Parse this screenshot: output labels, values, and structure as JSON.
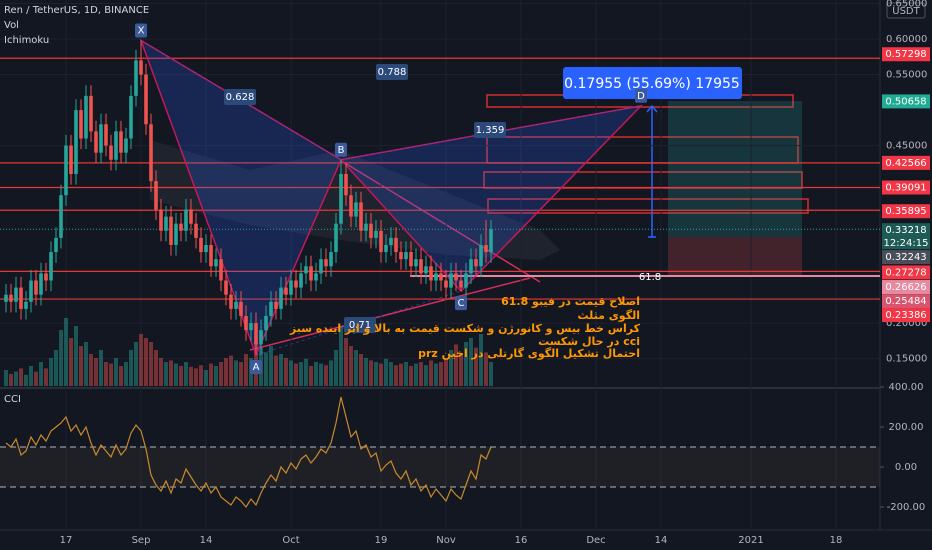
{
  "chart_data": [
    {
      "type": "candlestick",
      "title": "Ren / TetherUS, 1D, BINANCE",
      "indicators": [
        "Vol",
        "Ichimoku"
      ],
      "currency": "USDT",
      "up_color": "#26a69a",
      "down_color": "#ef5350",
      "open": [
        0.23,
        0.24,
        0.23,
        0.25,
        0.22,
        0.23,
        0.26,
        0.24,
        0.27,
        0.26,
        0.3,
        0.32,
        0.38,
        0.45,
        0.41,
        0.5,
        0.46,
        0.52,
        0.47,
        0.44,
        0.48,
        0.45,
        0.43,
        0.47,
        0.44,
        0.46,
        0.52,
        0.57,
        0.55,
        0.48,
        0.4,
        0.36,
        0.33,
        0.35,
        0.31,
        0.34,
        0.33,
        0.36,
        0.34,
        0.32,
        0.3,
        0.31,
        0.28,
        0.29,
        0.26,
        0.24,
        0.22,
        0.23,
        0.21,
        0.19,
        0.2,
        0.17,
        0.19,
        0.21,
        0.23,
        0.22,
        0.25,
        0.24,
        0.26,
        0.25,
        0.27,
        0.28,
        0.26,
        0.27,
        0.29,
        0.28,
        0.3,
        0.34,
        0.41,
        0.38,
        0.35,
        0.37,
        0.33,
        0.34,
        0.32,
        0.33,
        0.3,
        0.31,
        0.32,
        0.3,
        0.29,
        0.3,
        0.28,
        0.29,
        0.27,
        0.28,
        0.26,
        0.27,
        0.26,
        0.25,
        0.27,
        0.26,
        0.25,
        0.27,
        0.29,
        0.28,
        0.31,
        0.3
      ],
      "high": [
        0.255,
        0.255,
        0.265,
        0.265,
        0.245,
        0.275,
        0.275,
        0.285,
        0.285,
        0.315,
        0.335,
        0.395,
        0.465,
        0.465,
        0.515,
        0.515,
        0.535,
        0.535,
        0.485,
        0.495,
        0.495,
        0.465,
        0.485,
        0.485,
        0.475,
        0.535,
        0.585,
        0.598,
        0.565,
        0.495,
        0.415,
        0.375,
        0.365,
        0.365,
        0.355,
        0.355,
        0.375,
        0.375,
        0.355,
        0.335,
        0.325,
        0.325,
        0.305,
        0.305,
        0.275,
        0.255,
        0.245,
        0.245,
        0.225,
        0.215,
        0.215,
        0.205,
        0.225,
        0.245,
        0.245,
        0.265,
        0.265,
        0.275,
        0.275,
        0.285,
        0.295,
        0.295,
        0.285,
        0.305,
        0.305,
        0.315,
        0.355,
        0.43,
        0.425,
        0.395,
        0.385,
        0.385,
        0.355,
        0.355,
        0.345,
        0.345,
        0.325,
        0.335,
        0.335,
        0.315,
        0.315,
        0.315,
        0.305,
        0.305,
        0.295,
        0.295,
        0.285,
        0.285,
        0.275,
        0.285,
        0.285,
        0.275,
        0.285,
        0.305,
        0.305,
        0.325,
        0.345,
        0.345
      ],
      "low": [
        0.215,
        0.215,
        0.215,
        0.205,
        0.205,
        0.215,
        0.225,
        0.225,
        0.245,
        0.245,
        0.285,
        0.305,
        0.365,
        0.395,
        0.395,
        0.445,
        0.445,
        0.455,
        0.425,
        0.425,
        0.435,
        0.415,
        0.415,
        0.425,
        0.425,
        0.445,
        0.505,
        0.535,
        0.465,
        0.385,
        0.345,
        0.315,
        0.315,
        0.295,
        0.295,
        0.315,
        0.315,
        0.325,
        0.305,
        0.285,
        0.285,
        0.265,
        0.265,
        0.245,
        0.225,
        0.205,
        0.205,
        0.195,
        0.175,
        0.175,
        0.155,
        0.155,
        0.175,
        0.195,
        0.205,
        0.205,
        0.225,
        0.225,
        0.235,
        0.235,
        0.255,
        0.245,
        0.245,
        0.255,
        0.265,
        0.265,
        0.285,
        0.325,
        0.365,
        0.335,
        0.335,
        0.315,
        0.315,
        0.305,
        0.305,
        0.285,
        0.285,
        0.295,
        0.285,
        0.275,
        0.275,
        0.265,
        0.265,
        0.255,
        0.255,
        0.245,
        0.245,
        0.245,
        0.235,
        0.235,
        0.245,
        0.245,
        0.235,
        0.255,
        0.265,
        0.265,
        0.285,
        0.285
      ],
      "close": [
        0.24,
        0.23,
        0.25,
        0.22,
        0.23,
        0.26,
        0.24,
        0.27,
        0.26,
        0.3,
        0.32,
        0.38,
        0.45,
        0.41,
        0.5,
        0.46,
        0.52,
        0.47,
        0.44,
        0.48,
        0.45,
        0.43,
        0.47,
        0.44,
        0.46,
        0.52,
        0.57,
        0.55,
        0.48,
        0.4,
        0.36,
        0.33,
        0.35,
        0.31,
        0.34,
        0.33,
        0.36,
        0.34,
        0.32,
        0.3,
        0.31,
        0.28,
        0.29,
        0.26,
        0.24,
        0.22,
        0.23,
        0.21,
        0.19,
        0.2,
        0.17,
        0.19,
        0.21,
        0.23,
        0.22,
        0.25,
        0.24,
        0.26,
        0.25,
        0.27,
        0.28,
        0.26,
        0.27,
        0.29,
        0.28,
        0.3,
        0.34,
        0.41,
        0.38,
        0.35,
        0.37,
        0.33,
        0.34,
        0.32,
        0.33,
        0.3,
        0.31,
        0.32,
        0.3,
        0.29,
        0.3,
        0.28,
        0.29,
        0.27,
        0.28,
        0.26,
        0.27,
        0.26,
        0.25,
        0.27,
        0.26,
        0.25,
        0.27,
        0.29,
        0.28,
        0.31,
        0.3,
        0.332
      ],
      "ylim": [
        0.11,
        0.655
      ],
      "yticks": [
        {
          "value": 0.65,
          "label": "0.65000"
        },
        {
          "value": 0.6,
          "label": "0.60000"
        },
        {
          "value": 0.55,
          "label": "0.55000"
        },
        {
          "value": 0.45,
          "label": "0.45000"
        },
        {
          "value": 0.2,
          "label": "0.20000"
        },
        {
          "value": 0.15,
          "label": "0.15000"
        }
      ],
      "xticks": [
        {
          "value": 12,
          "label": "17"
        },
        {
          "value": 27,
          "label": "Sep"
        },
        {
          "value": 40,
          "label": "14"
        },
        {
          "value": 57,
          "label": "Oct"
        },
        {
          "value": 75,
          "label": "19"
        },
        {
          "value": 88,
          "label": "Nov"
        },
        {
          "value": 103,
          "label": "16"
        },
        {
          "value": 118,
          "label": "Dec"
        },
        {
          "value": 131,
          "label": "14"
        },
        {
          "value": 149,
          "label": "2021"
        },
        {
          "value": 166,
          "label": "18"
        }
      ],
      "price_labels": [
        {
          "value": 0.57298,
          "label": "0.57298",
          "color": "#f23645"
        },
        {
          "value": 0.50658,
          "label": "0.50658",
          "color": "#22ab94"
        },
        {
          "value": 0.42566,
          "label": "0.42566",
          "color": "#f23645"
        },
        {
          "value": 0.39091,
          "label": "0.39091",
          "color": "#f23645"
        },
        {
          "value": 0.35895,
          "label": "0.35895",
          "color": "#f23645"
        },
        {
          "value": 0.33218,
          "label": "0.33218",
          "color": "#1e5b56"
        },
        {
          "value": 0.32243,
          "label": "0.32243",
          "color": "#4a4e59"
        },
        {
          "value": 0.27278,
          "label": "0.27278",
          "color": "#f23645"
        },
        {
          "value": 0.26626,
          "label": "0.26626",
          "color": "#e68aa0"
        },
        {
          "value": 0.25484,
          "label": "0.25484",
          "color": "#d9546e"
        },
        {
          "value": 0.23386,
          "label": "0.23386",
          "color": "#f23645"
        }
      ],
      "countdown": "12:24:15",
      "pattern": [
        {
          "label": "X",
          "x": 27,
          "y": 0.598
        },
        {
          "label": "A",
          "x": 50,
          "y": 0.155
        },
        {
          "label": "B",
          "x": 67,
          "y": 0.43
        },
        {
          "label": "C",
          "x": 91,
          "y": 0.245
        },
        {
          "label": "D",
          "x": 127,
          "y": 0.506
        }
      ],
      "ratios": [
        "0.628",
        "0.788",
        "1.359",
        "0.71",
        "61.8"
      ],
      "measure": "0.17955 (55.69%) 17955",
      "notes": [
        "اصلاح قیمت در فیبو 61.8",
        "الگوی مثلث",
        "کراس خط بیس و کانورژن و شکست قیمت به بالا و ابر اینده سبز",
        "cci در حال شکست",
        "احتمال تشکیل الگوی گارتلی در اخین prz"
      ]
    },
    {
      "type": "bar",
      "title": "Vol",
      "values": [
        20,
        15,
        18,
        22,
        14,
        25,
        18,
        30,
        22,
        35,
        45,
        70,
        85,
        60,
        75,
        50,
        55,
        40,
        35,
        45,
        30,
        28,
        35,
        25,
        30,
        45,
        55,
        65,
        60,
        55,
        45,
        35,
        30,
        32,
        28,
        25,
        30,
        24,
        22,
        26,
        20,
        28,
        25,
        30,
        35,
        38,
        32,
        30,
        40,
        35,
        55,
        48,
        42,
        50,
        38,
        40,
        35,
        32,
        28,
        30,
        34,
        25,
        30,
        28,
        26,
        32,
        45,
        75,
        60,
        50,
        45,
        40,
        35,
        32,
        30,
        28,
        34,
        30,
        26,
        28,
        30,
        25,
        28,
        30,
        26,
        32,
        28,
        30,
        35,
        45,
        52,
        40,
        55,
        60,
        48,
        65,
        42,
        30
      ],
      "ylim": [
        0,
        100
      ]
    },
    {
      "type": "line",
      "title": "CCI",
      "color": "#c8892b",
      "values": [
        120,
        100,
        140,
        60,
        80,
        150,
        110,
        160,
        130,
        180,
        200,
        220,
        250,
        180,
        210,
        160,
        200,
        120,
        60,
        110,
        80,
        50,
        110,
        60,
        90,
        170,
        210,
        180,
        90,
        -40,
        -90,
        -120,
        -70,
        -130,
        -60,
        -80,
        -10,
        -50,
        -90,
        -120,
        -80,
        -130,
        -100,
        -150,
        -170,
        -190,
        -150,
        -170,
        -200,
        -160,
        -190,
        -130,
        -80,
        -40,
        -70,
        0,
        -30,
        20,
        -10,
        40,
        60,
        20,
        50,
        90,
        70,
        120,
        220,
        350,
        250,
        150,
        180,
        90,
        110,
        50,
        70,
        -20,
        10,
        30,
        -30,
        -60,
        -20,
        -90,
        -60,
        -120,
        -90,
        -150,
        -110,
        -140,
        -170,
        -110,
        -140,
        -160,
        -90,
        -20,
        -60,
        60,
        40,
        100
      ],
      "ylim": [
        -315,
        400
      ],
      "yticks": [
        {
          "value": 400,
          "label": "400.00"
        },
        {
          "value": 200,
          "label": "200.00"
        },
        {
          "value": 0,
          "label": "0.00"
        },
        {
          "value": -200,
          "label": "-200.00"
        }
      ],
      "bands": [
        100,
        -100
      ]
    }
  ]
}
